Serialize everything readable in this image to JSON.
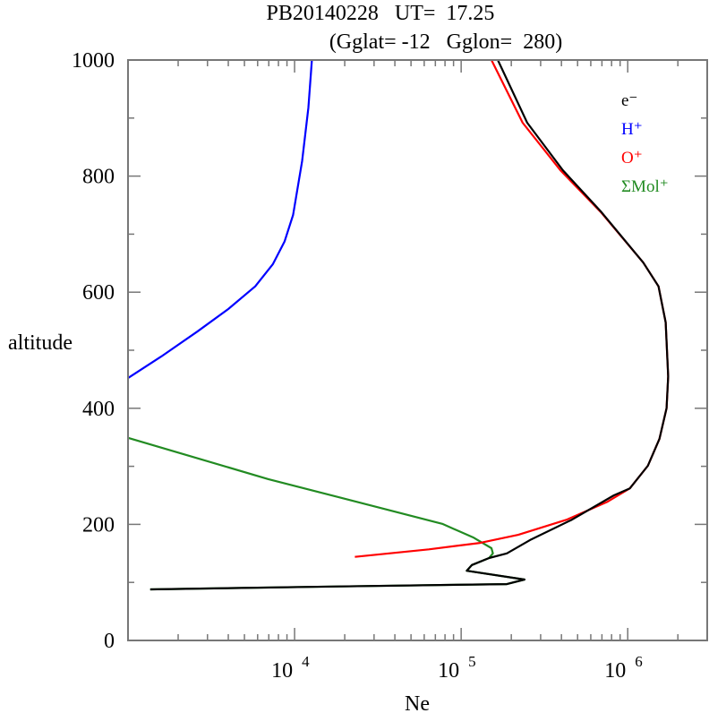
{
  "chart_data": {
    "type": "line",
    "title": "PB20140228   UT=  17.25",
    "subtitle": "(Gglat= -12   Gglon=  280)",
    "xlabel": "Ne",
    "ylabel": "altitude",
    "xscale": "log",
    "xlim": [
      1000,
      3000000
    ],
    "ylim": [
      0,
      1000
    ],
    "y_ticks": [
      "0",
      "200",
      "400",
      "600",
      "800",
      "1000"
    ],
    "y_tick_values": [
      0,
      200,
      400,
      600,
      800,
      1000
    ],
    "x_ticks": [
      {
        "value": 10000,
        "base": "10",
        "exp": "4"
      },
      {
        "value": 100000,
        "base": "10",
        "exp": "5"
      },
      {
        "value": 1000000,
        "base": "10",
        "exp": "6"
      }
    ],
    "grid": false,
    "legend_placement": "top-right",
    "series": [
      {
        "name": "e⁻",
        "color": "#000000",
        "points": [
          [
            166000,
            1000
          ],
          [
            249000,
            892
          ],
          [
            408000,
            810
          ],
          [
            695000,
            738
          ],
          [
            1240000,
            651
          ],
          [
            1530000,
            610
          ],
          [
            1690000,
            548
          ],
          [
            1750000,
            455
          ],
          [
            1710000,
            400
          ],
          [
            1550000,
            347
          ],
          [
            1320000,
            301
          ],
          [
            1030000,
            262
          ],
          [
            826000,
            250
          ],
          [
            462000,
            208
          ],
          [
            259000,
            173
          ],
          [
            188000,
            150
          ],
          [
            147000,
            142
          ],
          [
            116000,
            130
          ],
          [
            108000,
            120
          ],
          [
            240000,
            105
          ],
          [
            188000,
            97
          ],
          [
            18700,
            93
          ],
          [
            1360,
            88
          ]
        ]
      },
      {
        "name": "H⁺",
        "color": "#0000ff",
        "points": [
          [
            12700,
            1000
          ],
          [
            12100,
            918
          ],
          [
            11100,
            826
          ],
          [
            9800,
            733
          ],
          [
            8700,
            687
          ],
          [
            7400,
            648
          ],
          [
            5800,
            610
          ],
          [
            4000,
            571
          ],
          [
            2600,
            532
          ],
          [
            1580,
            489
          ],
          [
            1000,
            452
          ]
        ]
      },
      {
        "name": "O⁺",
        "color": "#ff0000",
        "points": [
          [
            152000,
            1000
          ],
          [
            234000,
            892
          ],
          [
            394000,
            810
          ],
          [
            690000,
            738
          ],
          [
            1240000,
            651
          ],
          [
            1530000,
            610
          ],
          [
            1690000,
            548
          ],
          [
            1750000,
            455
          ],
          [
            1710000,
            400
          ],
          [
            1550000,
            347
          ],
          [
            1320000,
            301
          ],
          [
            1030000,
            262
          ],
          [
            757000,
            239
          ],
          [
            430000,
            208
          ],
          [
            220000,
            182
          ],
          [
            130000,
            168
          ],
          [
            64000,
            157
          ],
          [
            23000,
            144
          ]
        ]
      },
      {
        "name": "ΣMol⁺",
        "color": "#228b22",
        "points": [
          [
            1000,
            349
          ],
          [
            6950,
            278
          ],
          [
            77000,
            201
          ],
          [
            119000,
            177
          ],
          [
            152000,
            159
          ],
          [
            155000,
            150
          ],
          [
            147000,
            142
          ],
          [
            116000,
            130
          ],
          [
            108000,
            120
          ],
          [
            240000,
            105
          ],
          [
            188000,
            97
          ],
          [
            18700,
            93
          ],
          [
            1360,
            88
          ]
        ]
      }
    ]
  }
}
